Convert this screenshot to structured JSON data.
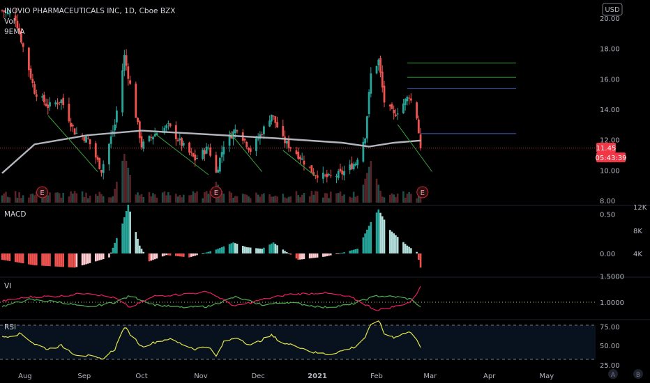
{
  "header": {
    "title": "INOVIO PHARMACEUTICALS INC, 1D, Cboe BZX",
    "indicator_vol": "Vol",
    "indicator_ema": "9EMA",
    "currency_button": "USD"
  },
  "colors": {
    "up": "#26a69a",
    "down": "#ef5350",
    "ema": "#b2b5be",
    "macd_up": "#26a69a",
    "macd_up_light": "#b2dfdb",
    "macd_down": "#ef5350",
    "macd_down_light": "#ffcdd2",
    "vi_plus": "#4caf50",
    "vi_minus": "#e91e63",
    "rsi": "#e6e64b",
    "trend_green": "#3aa03a",
    "level_blue": "#3f5fbf",
    "price_badge": "#f23645"
  },
  "price_badge": {
    "price": "11.45",
    "countdown": "05:43:39"
  },
  "earnings_marker": "E",
  "chart_data": [
    {
      "name": "price",
      "type": "candlestick",
      "title": "INOVIO PHARMACEUTICALS INC, 1D, Cboe BZX",
      "y_ticks": [
        "20.00",
        "18.00",
        "16.00",
        "14.00",
        "12.00",
        "10.00",
        "8.00"
      ],
      "ylim": [
        8,
        20.6
      ],
      "x_ticks": [
        "Aug",
        "Sep",
        "Oct",
        "Nov",
        "Dec",
        "2021",
        "Feb",
        "Mar",
        "Apr",
        "May"
      ],
      "last_price": 11.45,
      "key_points": [
        {
          "date": "2020-07-20",
          "close": 20.5
        },
        {
          "date": "2020-07-27",
          "close": 20.0
        },
        {
          "date": "2020-08-06",
          "close": 15.2
        },
        {
          "date": "2020-08-13",
          "close": 14.2
        },
        {
          "date": "2020-08-20",
          "close": 14.6
        },
        {
          "date": "2020-08-27",
          "close": 12.5
        },
        {
          "date": "2020-09-03",
          "close": 12.0
        },
        {
          "date": "2020-09-10",
          "close": 10.0
        },
        {
          "date": "2020-09-17",
          "close": 13.0
        },
        {
          "date": "2020-09-22",
          "close": 17.5
        },
        {
          "date": "2020-09-25",
          "close": 15.6
        },
        {
          "date": "2020-10-01",
          "close": 11.6
        },
        {
          "date": "2020-10-08",
          "close": 12.4
        },
        {
          "date": "2020-10-15",
          "close": 12.9
        },
        {
          "date": "2020-10-22",
          "close": 11.7
        },
        {
          "date": "2020-10-29",
          "close": 10.7
        },
        {
          "date": "2020-11-05",
          "close": 11.5
        },
        {
          "date": "2020-11-09",
          "close": 9.8
        },
        {
          "date": "2020-11-13",
          "close": 11.7
        },
        {
          "date": "2020-11-20",
          "close": 12.8
        },
        {
          "date": "2020-11-27",
          "close": 11.3
        },
        {
          "date": "2020-12-03",
          "close": 12.5
        },
        {
          "date": "2020-12-08",
          "close": 13.7
        },
        {
          "date": "2020-12-14",
          "close": 12.0
        },
        {
          "date": "2020-12-22",
          "close": 11.0
        },
        {
          "date": "2020-12-30",
          "close": 9.8
        },
        {
          "date": "2021-01-07",
          "close": 9.5
        },
        {
          "date": "2021-01-14",
          "close": 9.8
        },
        {
          "date": "2021-01-21",
          "close": 10.5
        },
        {
          "date": "2021-01-26",
          "close": 12.3
        },
        {
          "date": "2021-01-29",
          "close": 16.3
        },
        {
          "date": "2021-02-02",
          "close": 17.2
        },
        {
          "date": "2021-02-05",
          "close": 14.5
        },
        {
          "date": "2021-02-10",
          "close": 13.6
        },
        {
          "date": "2021-02-15",
          "close": 14.4
        },
        {
          "date": "2021-02-18",
          "close": 14.9
        },
        {
          "date": "2021-02-22",
          "close": 13.5
        },
        {
          "date": "2021-02-24",
          "close": 11.45
        }
      ],
      "ema": [
        {
          "date": "2020-07-20",
          "value": 9.8
        },
        {
          "date": "2020-08-06",
          "value": 11.7
        },
        {
          "date": "2020-09-03",
          "value": 12.3
        },
        {
          "date": "2020-10-01",
          "value": 12.6
        },
        {
          "date": "2020-11-05",
          "value": 12.35
        },
        {
          "date": "2020-12-10",
          "value": 12.1
        },
        {
          "date": "2021-01-14",
          "value": 11.8
        },
        {
          "date": "2021-01-28",
          "value": 11.55
        },
        {
          "date": "2021-02-10",
          "value": 11.8
        },
        {
          "date": "2021-02-24",
          "value": 11.95
        }
      ],
      "horizontal_levels": [
        {
          "value": 17.05,
          "from": "2021-02-17",
          "to": "2021-04-15",
          "color": "green"
        },
        {
          "value": 16.1,
          "from": "2021-02-17",
          "to": "2021-04-15",
          "color": "green"
        },
        {
          "value": 15.35,
          "from": "2021-02-17",
          "to": "2021-04-15",
          "color": "blue"
        },
        {
          "value": 12.4,
          "from": "2021-02-24",
          "to": "2021-04-15",
          "color": "blue"
        }
      ],
      "trend_lines": [
        {
          "from": [
            "2020-08-13",
            13.6
          ],
          "to": [
            "2020-09-08",
            9.9
          ]
        },
        {
          "from": [
            "2020-10-08",
            12.4
          ],
          "to": [
            "2020-11-05",
            9.7
          ]
        },
        {
          "from": [
            "2020-11-16",
            12.5
          ],
          "to": [
            "2020-12-03",
            9.9
          ]
        },
        {
          "from": [
            "2020-12-14",
            11.3
          ],
          "to": [
            "2020-12-31",
            9.6
          ]
        },
        {
          "from": [
            "2021-02-12",
            13.0
          ],
          "to": [
            "2021-03-02",
            9.9
          ]
        }
      ],
      "earnings_dates": [
        "2020-08-10",
        "2020-11-09",
        "2021-02-25"
      ]
    },
    {
      "name": "volume",
      "type": "bar",
      "y_ticks": [
        "12K",
        "8K",
        "4K"
      ],
      "peaks": [
        {
          "date": "2020-09-22",
          "value": 14000
        },
        {
          "date": "2020-11-09",
          "value": 6000
        },
        {
          "date": "2021-01-29",
          "value": 12000
        }
      ]
    },
    {
      "name": "MACD",
      "type": "histogram",
      "title": "MACD",
      "y_ticks": [
        "0.50",
        "0.00"
      ],
      "ylim": [
        -0.35,
        0.65
      ],
      "key_points": [
        {
          "date": "2020-07-20",
          "value": -0.08
        },
        {
          "date": "2020-08-06",
          "value": -0.15
        },
        {
          "date": "2020-08-27",
          "value": -0.18
        },
        {
          "date": "2020-09-14",
          "value": -0.05
        },
        {
          "date": "2020-09-21",
          "value": 0.38
        },
        {
          "date": "2020-09-24",
          "value": 0.62
        },
        {
          "date": "2020-09-30",
          "value": 0.1
        },
        {
          "date": "2020-10-05",
          "value": -0.1
        },
        {
          "date": "2020-10-14",
          "value": -0.02
        },
        {
          "date": "2020-10-26",
          "value": -0.05
        },
        {
          "date": "2020-11-09",
          "value": 0.05
        },
        {
          "date": "2020-11-18",
          "value": 0.14
        },
        {
          "date": "2020-11-25",
          "value": 0.08
        },
        {
          "date": "2020-12-03",
          "value": 0.06
        },
        {
          "date": "2020-12-09",
          "value": 0.14
        },
        {
          "date": "2020-12-14",
          "value": 0.05
        },
        {
          "date": "2020-12-22",
          "value": -0.08
        },
        {
          "date": "2021-01-05",
          "value": -0.04
        },
        {
          "date": "2021-01-14",
          "value": 0.01
        },
        {
          "date": "2021-01-22",
          "value": 0.06
        },
        {
          "date": "2021-01-29",
          "value": 0.4
        },
        {
          "date": "2021-02-02",
          "value": 0.56
        },
        {
          "date": "2021-02-08",
          "value": 0.3
        },
        {
          "date": "2021-02-17",
          "value": 0.1
        },
        {
          "date": "2021-02-22",
          "value": 0.02
        },
        {
          "date": "2021-02-24",
          "value": -0.18
        }
      ]
    },
    {
      "name": "VI",
      "type": "line",
      "title": "VI",
      "y_ticks": [
        "1.5000",
        "1.0000"
      ],
      "ylim": [
        0.85,
        1.6
      ],
      "series": [
        {
          "key": "vi_plus",
          "points": [
            {
              "date": "2020-07-20",
              "value": 0.92
            },
            {
              "date": "2020-08-03",
              "value": 1.05
            },
            {
              "date": "2020-08-20",
              "value": 1.0
            },
            {
              "date": "2020-09-03",
              "value": 0.9
            },
            {
              "date": "2020-09-17",
              "value": 1.0
            },
            {
              "date": "2020-09-25",
              "value": 1.12
            },
            {
              "date": "2020-10-08",
              "value": 0.95
            },
            {
              "date": "2020-10-22",
              "value": 0.9
            },
            {
              "date": "2020-11-05",
              "value": 0.92
            },
            {
              "date": "2020-11-19",
              "value": 1.1
            },
            {
              "date": "2020-12-03",
              "value": 0.95
            },
            {
              "date": "2020-12-17",
              "value": 1.0
            },
            {
              "date": "2021-01-04",
              "value": 0.9
            },
            {
              "date": "2021-01-18",
              "value": 0.95
            },
            {
              "date": "2021-02-01",
              "value": 1.12
            },
            {
              "date": "2021-02-12",
              "value": 1.1
            },
            {
              "date": "2021-02-20",
              "value": 1.05
            },
            {
              "date": "2021-02-24",
              "value": 0.9
            }
          ]
        },
        {
          "key": "vi_minus",
          "points": [
            {
              "date": "2020-07-20",
              "value": 1.02
            },
            {
              "date": "2020-08-03",
              "value": 1.1
            },
            {
              "date": "2020-08-20",
              "value": 1.12
            },
            {
              "date": "2020-09-03",
              "value": 1.18
            },
            {
              "date": "2020-09-17",
              "value": 1.08
            },
            {
              "date": "2020-09-25",
              "value": 0.9
            },
            {
              "date": "2020-10-08",
              "value": 1.12
            },
            {
              "date": "2020-10-22",
              "value": 1.15
            },
            {
              "date": "2020-11-05",
              "value": 1.2
            },
            {
              "date": "2020-11-19",
              "value": 0.92
            },
            {
              "date": "2020-12-03",
              "value": 1.05
            },
            {
              "date": "2020-12-17",
              "value": 1.15
            },
            {
              "date": "2021-01-04",
              "value": 1.18
            },
            {
              "date": "2021-01-18",
              "value": 1.1
            },
            {
              "date": "2021-02-01",
              "value": 0.85
            },
            {
              "date": "2021-02-12",
              "value": 0.93
            },
            {
              "date": "2021-02-20",
              "value": 1.02
            },
            {
              "date": "2021-02-24",
              "value": 1.32
            }
          ]
        }
      ],
      "reference_line": 1.0
    },
    {
      "name": "RSI",
      "type": "line",
      "title": "RSI",
      "y_ticks": [
        "75.00",
        "50.00",
        "25.00"
      ],
      "ylim": [
        25,
        80
      ],
      "band": [
        30,
        70
      ],
      "points": [
        {
          "date": "2020-07-20",
          "value": 56
        },
        {
          "date": "2020-07-30",
          "value": 60
        },
        {
          "date": "2020-08-06",
          "value": 48
        },
        {
          "date": "2020-08-13",
          "value": 42
        },
        {
          "date": "2020-08-20",
          "value": 46
        },
        {
          "date": "2020-08-27",
          "value": 36
        },
        {
          "date": "2020-09-03",
          "value": 34
        },
        {
          "date": "2020-09-10",
          "value": 30
        },
        {
          "date": "2020-09-17",
          "value": 42
        },
        {
          "date": "2020-09-22",
          "value": 68
        },
        {
          "date": "2020-09-25",
          "value": 60
        },
        {
          "date": "2020-10-01",
          "value": 45
        },
        {
          "date": "2020-10-08",
          "value": 50
        },
        {
          "date": "2020-10-15",
          "value": 54
        },
        {
          "date": "2020-10-22",
          "value": 48
        },
        {
          "date": "2020-10-29",
          "value": 42
        },
        {
          "date": "2020-11-05",
          "value": 45
        },
        {
          "date": "2020-11-09",
          "value": 33
        },
        {
          "date": "2020-11-13",
          "value": 50
        },
        {
          "date": "2020-11-20",
          "value": 56
        },
        {
          "date": "2020-11-27",
          "value": 46
        },
        {
          "date": "2020-12-03",
          "value": 53
        },
        {
          "date": "2020-12-08",
          "value": 58
        },
        {
          "date": "2020-12-14",
          "value": 49
        },
        {
          "date": "2020-12-22",
          "value": 45
        },
        {
          "date": "2020-12-30",
          "value": 38
        },
        {
          "date": "2021-01-07",
          "value": 36
        },
        {
          "date": "2021-01-14",
          "value": 40
        },
        {
          "date": "2021-01-21",
          "value": 45
        },
        {
          "date": "2021-01-26",
          "value": 56
        },
        {
          "date": "2021-01-29",
          "value": 70
        },
        {
          "date": "2021-02-02",
          "value": 76
        },
        {
          "date": "2021-02-05",
          "value": 60
        },
        {
          "date": "2021-02-10",
          "value": 56
        },
        {
          "date": "2021-02-15",
          "value": 60
        },
        {
          "date": "2021-02-18",
          "value": 62
        },
        {
          "date": "2021-02-22",
          "value": 54
        },
        {
          "date": "2021-02-24",
          "value": 45
        }
      ]
    }
  ],
  "bottom_buttons": [
    "A",
    "B"
  ]
}
